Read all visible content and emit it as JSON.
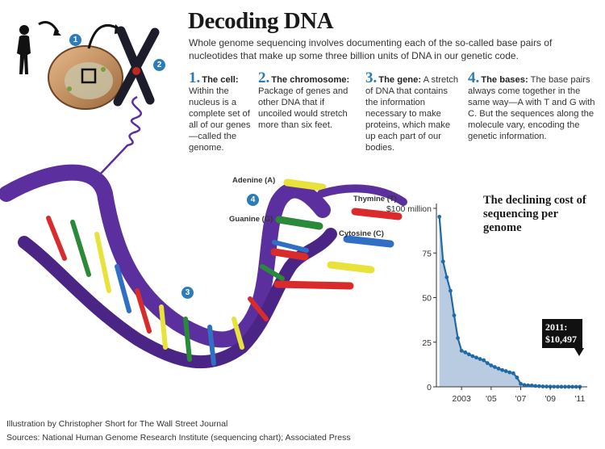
{
  "header": {
    "title": "Decoding DNA",
    "subtitle": "Whole genome sequencing involves documenting each of the so-called base pairs of nucleotides that make up some three billion units of DNA in our genetic code."
  },
  "steps": [
    {
      "number": "1.",
      "name": "The cell:",
      "text": "Within the nucleus is a complete set of all of our genes—called the genome."
    },
    {
      "number": "2.",
      "name": "The chromosome:",
      "text": "Package of genes and other DNA that if uncoiled would stretch more than six feet."
    },
    {
      "number": "3.",
      "name": "The gene:",
      "text": "A stretch of DNA that contains the information necessary to make proteins, which make up each part of our bodies."
    },
    {
      "number": "4.",
      "name": "The bases:",
      "text": "The base pairs always come together in the same way—A with T and G with C. But the sequences along the molecule vary, encoding the genetic information."
    }
  ],
  "badges": [
    "1",
    "2",
    "3",
    "4"
  ],
  "bases": {
    "adenine": "Adenine (A)",
    "thymine": "Thymine (T)",
    "guanine": "Guanine (G)",
    "cytosine": "Cytosine (C)"
  },
  "colors": {
    "accent": "#2a7ab8",
    "helix": "#5b2f9e",
    "adenine": "#e8e23a",
    "thymine": "#d92b2b",
    "guanine": "#2a8a3a",
    "cytosine": "#2f6fc4",
    "chart_line": "#1f6aa5",
    "chart_fill": "#b9cbe0"
  },
  "chart_data": {
    "type": "area",
    "title": "The declining cost of sequencing per genome",
    "xlim": [
      2001.3,
      2011.5
    ],
    "ylim": [
      0,
      100
    ],
    "yunit_suffix": " million",
    "ytick_values": [
      0,
      25,
      50,
      75,
      100
    ],
    "ytick_labels": [
      "0",
      "25",
      "50",
      "75",
      "$100 million"
    ],
    "xtick_values": [
      2003,
      2005,
      2007,
      2009,
      2011
    ],
    "xtick_labels": [
      "2003",
      "'05",
      "'07",
      "'09",
      "'11"
    ],
    "x": [
      2001.5,
      2001.75,
      2002.0,
      2002.25,
      2002.5,
      2002.75,
      2003.0,
      2003.25,
      2003.5,
      2003.75,
      2004.0,
      2004.25,
      2004.5,
      2004.75,
      2005.0,
      2005.25,
      2005.5,
      2005.75,
      2006.0,
      2006.25,
      2006.5,
      2006.75,
      2007.0,
      2007.25,
      2007.5,
      2007.75,
      2008.0,
      2008.25,
      2008.5,
      2008.75,
      2009.0,
      2009.25,
      2009.5,
      2009.75,
      2010.0,
      2010.25,
      2010.5,
      2010.75,
      2011.0
    ],
    "y": [
      95.3,
      70.2,
      61.4,
      53.8,
      40.0,
      27.3,
      20.2,
      19.3,
      18.2,
      17.2,
      16.4,
      15.6,
      14.9,
      13.3,
      12.0,
      11.1,
      10.2,
      9.4,
      8.8,
      8.1,
      7.6,
      5.2,
      1.7,
      1.0,
      0.8,
      0.7,
      0.5,
      0.35,
      0.2,
      0.15,
      0.1,
      0.07,
      0.05,
      0.03,
      0.03,
      0.02,
      0.015,
      0.012,
      0.010497
    ],
    "callout": "2011: $10,497",
    "grid": false,
    "legend": "none"
  },
  "credits": {
    "illustration": "Illustration by Christopher Short for The Wall Street Journal",
    "sources": "Sources: National Human Genome Research Institute (sequencing chart); Associated Press"
  }
}
